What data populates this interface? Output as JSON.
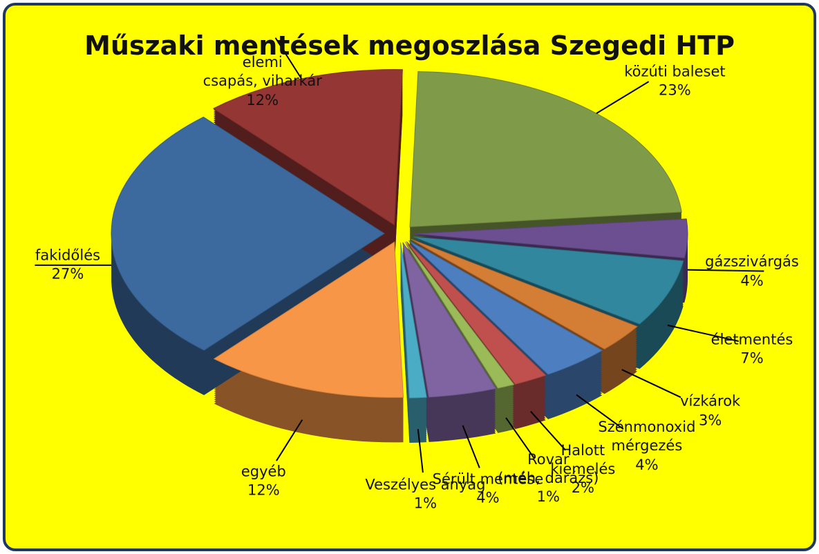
{
  "chart_data": {
    "type": "pie",
    "title": "Műszaki mentések megoszlása Szegedi HTP",
    "categories": [
      "közúti baleset",
      "gázszivárgás",
      "életmentés",
      "vízkárok",
      "Szénmonoxid\nmérgezés",
      "Halott\nkiemelés",
      "Rovar\n(méh, darázs)",
      "Sérült mentése",
      "Veszélyes anyag",
      "egyéb",
      "fakidőlés",
      "elemi\ncsapás, viharkár"
    ],
    "values": [
      23,
      4,
      7,
      3,
      4,
      2,
      1,
      4,
      1,
      12,
      27,
      12
    ],
    "value_labels": [
      "23%",
      "4%",
      "7%",
      "3%",
      "4%",
      "2%",
      "1%",
      "4%",
      "1%",
      "12%",
      "27%",
      "12%"
    ],
    "colors": [
      "#7f9a48",
      "#6b4f91",
      "#31879e",
      "#d47d35",
      "#4d7fc0",
      "#c0504d",
      "#9bbb59",
      "#8064a2",
      "#4bacc6",
      "#f79646",
      "#3c6a9e",
      "#943634"
    ]
  }
}
